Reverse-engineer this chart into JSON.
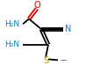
{
  "bg_color": "#ffffff",
  "bond_color": "#000000",
  "atom_colors": {
    "O": "#dd0000",
    "N": "#0088bb",
    "S": "#bbaa00",
    "C": "#000000"
  },
  "figsize": [
    0.98,
    0.83
  ],
  "dpi": 100,
  "xlim": [
    0,
    98
  ],
  "ylim": [
    0,
    83
  ]
}
